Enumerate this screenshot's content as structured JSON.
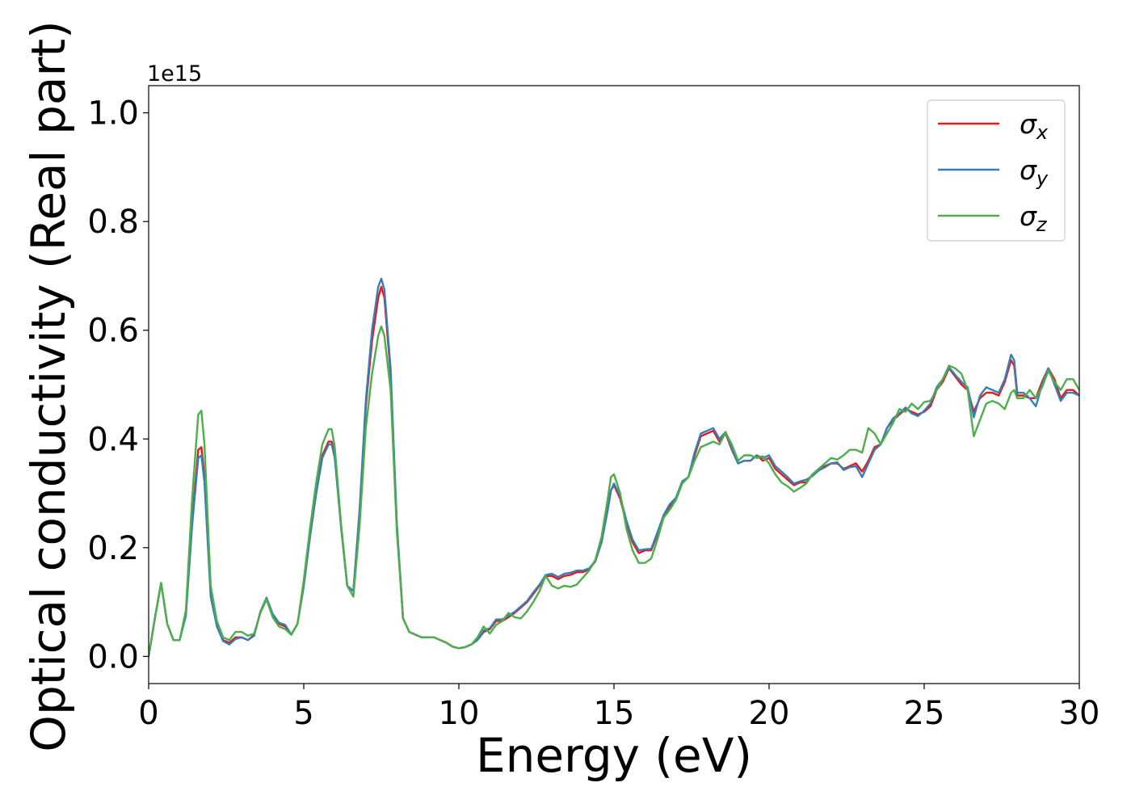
{
  "chart_data": {
    "type": "line",
    "title": "",
    "xlabel": "Energy (eV)",
    "ylabel": "Optical conductivity (Real part)",
    "y_offset_text": "1e15",
    "xlim": [
      0,
      30
    ],
    "ylim": [
      -0.05,
      1.05
    ],
    "xticks": [
      0,
      5,
      10,
      15,
      20,
      25,
      30
    ],
    "xtick_labels": [
      "0",
      "5",
      "10",
      "15",
      "20",
      "25",
      "30"
    ],
    "yticks": [
      0.0,
      0.2,
      0.4,
      0.6,
      0.8,
      1.0
    ],
    "ytick_labels": [
      "0.0",
      "0.2",
      "0.4",
      "0.6",
      "0.8",
      "1.0"
    ],
    "grid": false,
    "legend_position": "top-right",
    "x": [
      0,
      0.2,
      0.4,
      0.6,
      0.8,
      1.0,
      1.2,
      1.4,
      1.6,
      1.7,
      1.8,
      2.0,
      2.2,
      2.4,
      2.6,
      2.8,
      3.0,
      3.2,
      3.4,
      3.6,
      3.8,
      4.0,
      4.2,
      4.4,
      4.6,
      4.8,
      5.0,
      5.2,
      5.4,
      5.6,
      5.8,
      5.9,
      6.0,
      6.2,
      6.4,
      6.6,
      6.8,
      7.0,
      7.2,
      7.4,
      7.5,
      7.6,
      7.8,
      8.0,
      8.2,
      8.4,
      8.6,
      8.8,
      9.0,
      9.2,
      9.4,
      9.6,
      9.8,
      10.0,
      10.2,
      10.4,
      10.6,
      10.8,
      11.0,
      11.2,
      11.4,
      11.6,
      11.8,
      12.0,
      12.2,
      12.4,
      12.6,
      12.8,
      13.0,
      13.2,
      13.4,
      13.6,
      13.8,
      14.0,
      14.2,
      14.4,
      14.6,
      14.8,
      14.9,
      15.0,
      15.2,
      15.4,
      15.6,
      15.8,
      16.0,
      16.2,
      16.4,
      16.6,
      16.8,
      17.0,
      17.2,
      17.4,
      17.6,
      17.8,
      18.0,
      18.2,
      18.4,
      18.6,
      18.8,
      19.0,
      19.2,
      19.4,
      19.6,
      19.8,
      20.0,
      20.2,
      20.4,
      20.6,
      20.8,
      21.0,
      21.2,
      21.4,
      21.6,
      21.8,
      22.0,
      22.2,
      22.4,
      22.6,
      22.8,
      23.0,
      23.2,
      23.4,
      23.6,
      23.8,
      24.0,
      24.2,
      24.4,
      24.6,
      24.8,
      25.0,
      25.2,
      25.4,
      25.6,
      25.8,
      26.0,
      26.2,
      26.4,
      26.6,
      26.8,
      27.0,
      27.2,
      27.4,
      27.6,
      27.8,
      27.9,
      28.0,
      28.2,
      28.4,
      28.6,
      28.8,
      29.0,
      29.2,
      29.4,
      29.6,
      29.8,
      30.0
    ],
    "series": [
      {
        "name": "σx",
        "label_main": "σ",
        "label_sub": "x",
        "color": "#e41a1c",
        "values": [
          0.0,
          0.07,
          0.135,
          0.06,
          0.03,
          0.03,
          0.08,
          0.25,
          0.38,
          0.385,
          0.33,
          0.12,
          0.06,
          0.03,
          0.025,
          0.035,
          0.035,
          0.03,
          0.04,
          0.08,
          0.105,
          0.075,
          0.06,
          0.055,
          0.04,
          0.06,
          0.13,
          0.22,
          0.3,
          0.37,
          0.395,
          0.395,
          0.37,
          0.24,
          0.13,
          0.12,
          0.26,
          0.46,
          0.58,
          0.66,
          0.68,
          0.66,
          0.52,
          0.24,
          0.07,
          0.045,
          0.04,
          0.035,
          0.035,
          0.035,
          0.03,
          0.025,
          0.018,
          0.015,
          0.017,
          0.022,
          0.03,
          0.045,
          0.05,
          0.065,
          0.065,
          0.072,
          0.08,
          0.09,
          0.1,
          0.115,
          0.13,
          0.148,
          0.148,
          0.142,
          0.148,
          0.15,
          0.155,
          0.155,
          0.16,
          0.175,
          0.21,
          0.27,
          0.305,
          0.315,
          0.29,
          0.245,
          0.21,
          0.19,
          0.195,
          0.195,
          0.225,
          0.255,
          0.275,
          0.29,
          0.32,
          0.33,
          0.37,
          0.405,
          0.41,
          0.415,
          0.395,
          0.41,
          0.38,
          0.355,
          0.36,
          0.36,
          0.37,
          0.36,
          0.365,
          0.345,
          0.335,
          0.325,
          0.315,
          0.32,
          0.32,
          0.335,
          0.345,
          0.35,
          0.355,
          0.355,
          0.345,
          0.35,
          0.355,
          0.34,
          0.36,
          0.385,
          0.39,
          0.42,
          0.435,
          0.445,
          0.455,
          0.45,
          0.445,
          0.45,
          0.46,
          0.49,
          0.505,
          0.53,
          0.515,
          0.5,
          0.49,
          0.45,
          0.475,
          0.485,
          0.485,
          0.48,
          0.505,
          0.545,
          0.535,
          0.48,
          0.48,
          0.475,
          0.475,
          0.505,
          0.53,
          0.51,
          0.475,
          0.49,
          0.49,
          0.48
        ]
      },
      {
        "name": "σy",
        "label_main": "σ",
        "label_sub": "y",
        "color": "#377eb8",
        "values": [
          0.0,
          0.07,
          0.135,
          0.06,
          0.03,
          0.03,
          0.075,
          0.24,
          0.365,
          0.37,
          0.32,
          0.11,
          0.055,
          0.028,
          0.022,
          0.032,
          0.035,
          0.03,
          0.038,
          0.082,
          0.108,
          0.078,
          0.062,
          0.058,
          0.04,
          0.06,
          0.13,
          0.22,
          0.3,
          0.365,
          0.39,
          0.39,
          0.365,
          0.24,
          0.13,
          0.12,
          0.27,
          0.47,
          0.6,
          0.68,
          0.695,
          0.675,
          0.53,
          0.245,
          0.07,
          0.045,
          0.04,
          0.035,
          0.035,
          0.035,
          0.03,
          0.025,
          0.018,
          0.015,
          0.017,
          0.022,
          0.03,
          0.048,
          0.052,
          0.068,
          0.068,
          0.075,
          0.082,
          0.092,
          0.102,
          0.118,
          0.132,
          0.15,
          0.152,
          0.146,
          0.152,
          0.154,
          0.158,
          0.158,
          0.162,
          0.176,
          0.21,
          0.27,
          0.305,
          0.318,
          0.295,
          0.25,
          0.215,
          0.195,
          0.197,
          0.198,
          0.228,
          0.26,
          0.28,
          0.292,
          0.322,
          0.33,
          0.375,
          0.41,
          0.415,
          0.42,
          0.4,
          0.413,
          0.382,
          0.355,
          0.36,
          0.36,
          0.37,
          0.365,
          0.37,
          0.35,
          0.34,
          0.33,
          0.318,
          0.322,
          0.325,
          0.332,
          0.342,
          0.348,
          0.355,
          0.357,
          0.343,
          0.348,
          0.35,
          0.33,
          0.355,
          0.38,
          0.39,
          0.42,
          0.438,
          0.447,
          0.458,
          0.447,
          0.442,
          0.452,
          0.465,
          0.495,
          0.51,
          0.532,
          0.518,
          0.505,
          0.495,
          0.44,
          0.48,
          0.495,
          0.49,
          0.485,
          0.51,
          0.555,
          0.545,
          0.485,
          0.485,
          0.475,
          0.46,
          0.5,
          0.53,
          0.5,
          0.47,
          0.485,
          0.485,
          0.48
        ]
      },
      {
        "name": "σz",
        "label_main": "σ",
        "label_sub": "z",
        "color": "#4daf4a",
        "values": [
          0.0,
          0.07,
          0.135,
          0.06,
          0.03,
          0.03,
          0.085,
          0.29,
          0.445,
          0.452,
          0.39,
          0.13,
          0.065,
          0.035,
          0.03,
          0.045,
          0.045,
          0.038,
          0.042,
          0.08,
          0.105,
          0.072,
          0.055,
          0.05,
          0.04,
          0.06,
          0.14,
          0.235,
          0.32,
          0.39,
          0.418,
          0.418,
          0.385,
          0.245,
          0.13,
          0.11,
          0.24,
          0.42,
          0.52,
          0.59,
          0.607,
          0.59,
          0.49,
          0.23,
          0.07,
          0.045,
          0.04,
          0.035,
          0.035,
          0.035,
          0.03,
          0.025,
          0.018,
          0.015,
          0.017,
          0.022,
          0.035,
          0.055,
          0.042,
          0.058,
          0.065,
          0.08,
          0.072,
          0.07,
          0.083,
          0.1,
          0.12,
          0.148,
          0.13,
          0.125,
          0.13,
          0.128,
          0.132,
          0.145,
          0.158,
          0.178,
          0.22,
          0.29,
          0.33,
          0.335,
          0.3,
          0.235,
          0.195,
          0.172,
          0.172,
          0.18,
          0.215,
          0.255,
          0.27,
          0.288,
          0.318,
          0.33,
          0.36,
          0.385,
          0.39,
          0.395,
          0.39,
          0.412,
          0.39,
          0.36,
          0.37,
          0.37,
          0.365,
          0.368,
          0.355,
          0.335,
          0.32,
          0.313,
          0.303,
          0.31,
          0.318,
          0.335,
          0.345,
          0.355,
          0.365,
          0.362,
          0.37,
          0.38,
          0.38,
          0.375,
          0.42,
          0.41,
          0.39,
          0.41,
          0.43,
          0.455,
          0.45,
          0.465,
          0.455,
          0.468,
          0.47,
          0.49,
          0.51,
          0.535,
          0.53,
          0.52,
          0.49,
          0.405,
          0.435,
          0.465,
          0.47,
          0.465,
          0.455,
          0.485,
          0.49,
          0.475,
          0.475,
          0.49,
          0.475,
          0.495,
          0.525,
          0.505,
          0.49,
          0.51,
          0.51,
          0.49
        ]
      }
    ]
  }
}
